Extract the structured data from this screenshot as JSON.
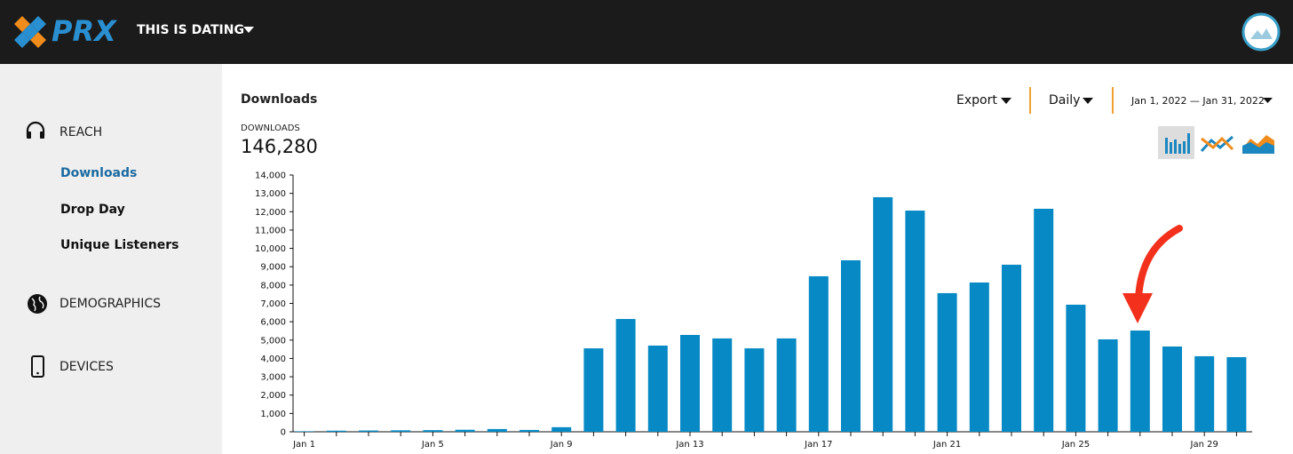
{
  "header": {
    "logo": "PRX",
    "podcast": "THIS IS DATING"
  },
  "sidebar": {
    "sections": [
      {
        "label": "REACH",
        "items": [
          "Downloads",
          "Drop Day",
          "Unique Listeners"
        ]
      },
      {
        "label": "DEMOGRAPHICS"
      },
      {
        "label": "DEVICES"
      }
    ]
  },
  "toolbar": {
    "title": "Downloads",
    "export": "Export",
    "interval": "Daily",
    "date_range": "Jan 1, 2022 — Jan 31, 2022"
  },
  "summary": {
    "label": "DOWNLOADS",
    "total": "146,280"
  },
  "chart_data": {
    "type": "bar",
    "color": "#0689c4",
    "categories": [
      "Jan 1",
      null,
      null,
      null,
      "Jan 5",
      null,
      null,
      null,
      "Jan 9",
      null,
      null,
      null,
      "Jan 13",
      null,
      null,
      null,
      "Jan 17",
      null,
      null,
      null,
      "Jan 21",
      null,
      null,
      null,
      "Jan 25",
      null,
      null,
      null,
      "Jan 29",
      null
    ],
    "values": [
      30,
      60,
      70,
      80,
      90,
      110,
      150,
      100,
      250,
      4550,
      6150,
      4700,
      5280,
      5090,
      4550,
      5090,
      8480,
      9350,
      12790,
      12060,
      7560,
      8140,
      9110,
      12160,
      6930,
      5040,
      5520,
      4650,
      4120,
      4070
    ],
    "ylim": [
      0,
      14000
    ],
    "yticks": [
      0,
      {
        "value": 1000,
        "label": "1,000"
      },
      {
        "value": 2000,
        "label": "2,000"
      },
      {
        "value": 3000,
        "label": "3,000"
      },
      {
        "value": 4000,
        "label": "4,000"
      },
      {
        "value": 5000,
        "label": "5,000"
      },
      {
        "value": 6000,
        "label": "6,000"
      },
      {
        "value": 7000,
        "label": "7,000"
      },
      {
        "value": 8000,
        "label": "8,000"
      },
      {
        "value": 9000,
        "label": "9,000"
      },
      {
        "value": 10000,
        "label": "10,000"
      },
      {
        "value": 11000,
        "label": "11,000"
      },
      {
        "value": 12000,
        "label": "12,000"
      },
      {
        "value": 13000,
        "label": "13,000"
      },
      {
        "value": 14000,
        "label": "14,000"
      }
    ],
    "grid": false
  }
}
